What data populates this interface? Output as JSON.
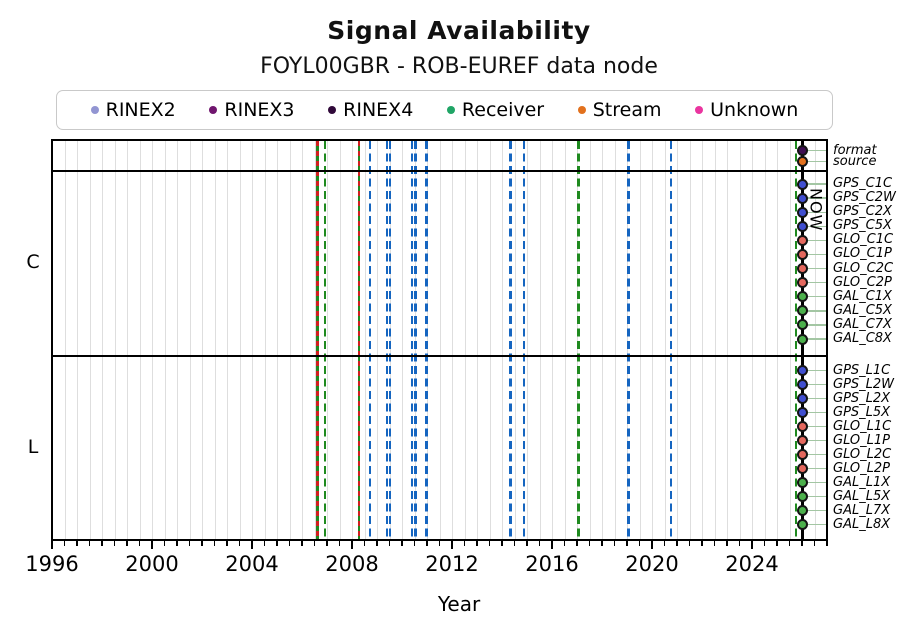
{
  "title": "Signal Availability",
  "subtitle": "FOYL00GBR - ROB-EUREF data node",
  "legend": [
    {
      "label": "RINEX2",
      "color": "#9295d2"
    },
    {
      "label": "RINEX3",
      "color": "#70156e"
    },
    {
      "label": "RINEX4",
      "color": "#30093a"
    },
    {
      "label": "Receiver",
      "color": "#20a566"
    },
    {
      "label": "Stream",
      "color": "#e2711d"
    },
    {
      "label": "Unknown",
      "color": "#ea359f"
    }
  ],
  "x_axis": {
    "label": "Year",
    "ticks": [
      1996,
      2000,
      2004,
      2008,
      2012,
      2016,
      2020,
      2024
    ],
    "range": [
      1996,
      2027
    ],
    "minor_tick_interval": 0.5
  },
  "now": {
    "year": 2026.02,
    "label": "NOW"
  },
  "colors": {
    "blue_event": "#1565c0",
    "green_event": "#1f8a1f",
    "red_event": "#d01f1f",
    "now_line": "#000000",
    "grid": "#dedede",
    "leader": "#a3c6a3",
    "GPS": "#404fd0",
    "GLO": "#e4685e",
    "GAL": "#4cb04c",
    "format": "#3f0e52",
    "source": "#e2711d"
  },
  "chart_data": {
    "type": "event-timeline",
    "x_range": [
      1996,
      2027
    ],
    "sections": [
      {
        "name": "",
        "rows": [
          {
            "label": "format",
            "category": "format"
          },
          {
            "label": "source",
            "category": "source"
          }
        ]
      },
      {
        "name": "C",
        "rows": [
          {
            "label": "GPS_C1C",
            "category": "GPS"
          },
          {
            "label": "GPS_C2W",
            "category": "GPS"
          },
          {
            "label": "GPS_C2X",
            "category": "GPS"
          },
          {
            "label": "GPS_C5X",
            "category": "GPS"
          },
          {
            "label": "GLO_C1C",
            "category": "GLO"
          },
          {
            "label": "GLO_C1P",
            "category": "GLO"
          },
          {
            "label": "GLO_C2C",
            "category": "GLO"
          },
          {
            "label": "GLO_C2P",
            "category": "GLO"
          },
          {
            "label": "GAL_C1X",
            "category": "GAL"
          },
          {
            "label": "GAL_C5X",
            "category": "GAL"
          },
          {
            "label": "GAL_C7X",
            "category": "GAL"
          },
          {
            "label": "GAL_C8X",
            "category": "GAL"
          }
        ]
      },
      {
        "name": "L",
        "rows": [
          {
            "label": "GPS_L1C",
            "category": "GPS"
          },
          {
            "label": "GPS_L2W",
            "category": "GPS"
          },
          {
            "label": "GPS_L2X",
            "category": "GPS"
          },
          {
            "label": "GPS_L5X",
            "category": "GPS"
          },
          {
            "label": "GLO_L1C",
            "category": "GLO"
          },
          {
            "label": "GLO_L1P",
            "category": "GLO"
          },
          {
            "label": "GLO_L2C",
            "category": "GLO"
          },
          {
            "label": "GLO_L2P",
            "category": "GLO"
          },
          {
            "label": "GAL_L1X",
            "category": "GAL"
          },
          {
            "label": "GAL_L5X",
            "category": "GAL"
          },
          {
            "label": "GAL_L7X",
            "category": "GAL"
          },
          {
            "label": "GAL_L8X",
            "category": "GAL"
          }
        ]
      }
    ],
    "event_lines": [
      {
        "year": 2006.63,
        "color": "green_event",
        "style": "solid"
      },
      {
        "year": 2006.63,
        "color": "red_event",
        "style": "dashed-short"
      },
      {
        "year": 2006.92,
        "color": "green_event",
        "style": "dashed"
      },
      {
        "year": 2008.28,
        "color": "green_event",
        "style": "solid"
      },
      {
        "year": 2008.28,
        "color": "red_event",
        "style": "dashed-short"
      },
      {
        "year": 2008.72,
        "color": "blue_event",
        "style": "dashed"
      },
      {
        "year": 2009.4,
        "color": "blue_event",
        "style": "dashed"
      },
      {
        "year": 2009.52,
        "color": "blue_event",
        "style": "dashed"
      },
      {
        "year": 2010.4,
        "color": "blue_event",
        "style": "dashed"
      },
      {
        "year": 2010.55,
        "color": "blue_event",
        "style": "dashed"
      },
      {
        "year": 2010.98,
        "color": "blue_event",
        "style": "dashed"
      },
      {
        "year": 2014.35,
        "color": "blue_event",
        "style": "dashed"
      },
      {
        "year": 2014.88,
        "color": "blue_event",
        "style": "dashed"
      },
      {
        "year": 2017.05,
        "color": "green_event",
        "style": "dashed"
      },
      {
        "year": 2019.05,
        "color": "blue_event",
        "style": "dashed"
      },
      {
        "year": 2020.76,
        "color": "blue_event",
        "style": "dashed"
      },
      {
        "year": 2025.76,
        "color": "green_event",
        "style": "dashed"
      }
    ],
    "now_markers": "one dot per row at the NOW line, colored by row category"
  }
}
